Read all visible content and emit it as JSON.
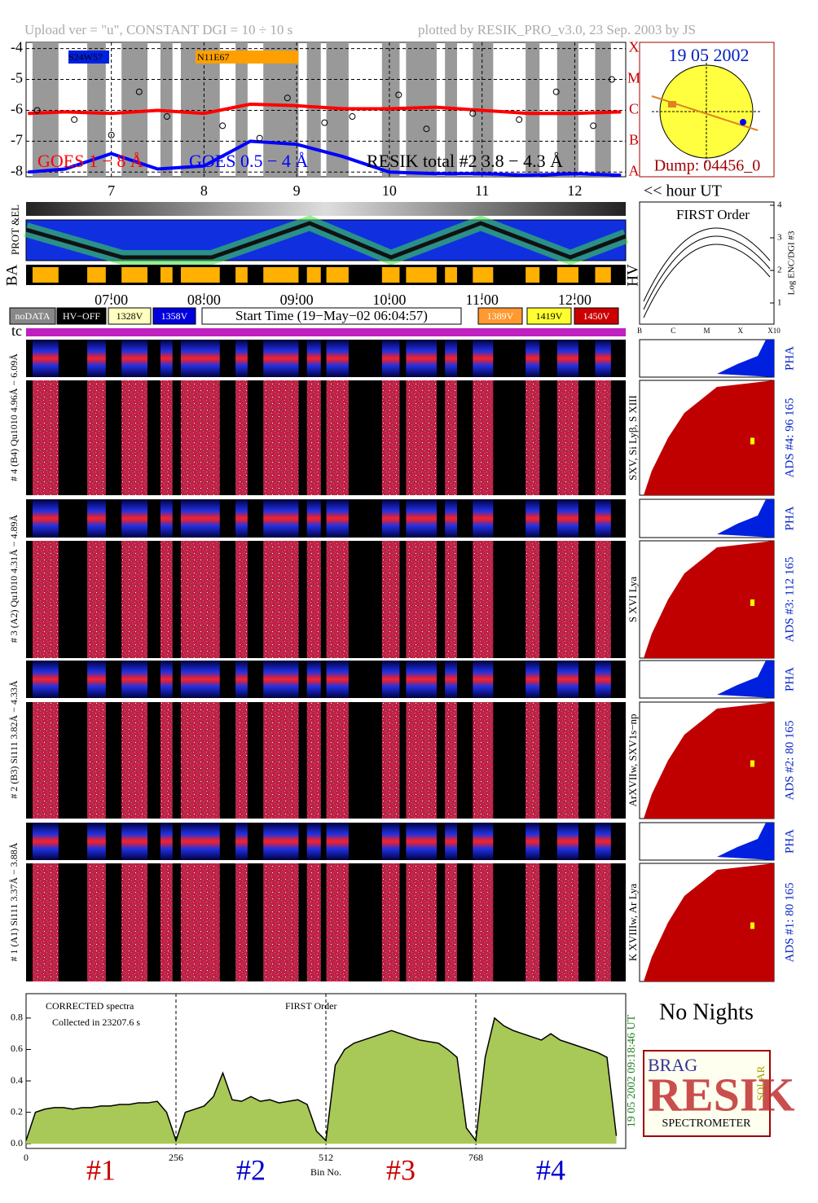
{
  "header": {
    "upload": "Upload ver = \"u\", CONSTANT  DGI =  10 ÷  10 s",
    "plotted": "plotted by RESIK_PRO_v3.0, 23 Sep. 2003 by JS"
  },
  "chart_data": [
    {
      "type": "goes",
      "xlim": [
        6.08,
        12.55
      ],
      "ylim": [
        -8.15,
        -3.8
      ],
      "xticks": [
        7,
        8,
        9,
        10,
        11,
        12
      ],
      "yticks": [
        -4,
        -5,
        -6,
        -7,
        -8
      ],
      "y2lim": [
        -8.15,
        -3.8
      ],
      "y2ticks": [
        {
          "value": -4,
          "label": "X"
        },
        {
          "value": -5,
          "label": "M"
        },
        {
          "value": -6,
          "label": "C"
        },
        {
          "value": -7,
          "label": "B"
        },
        {
          "value": -8,
          "label": "A"
        }
      ],
      "x2ticks": [
        {
          "value": 7,
          "label": "07:00"
        },
        {
          "value": 8,
          "label": "08:00"
        },
        {
          "value": 9,
          "label": "09:00"
        },
        {
          "value": 10,
          "label": "10:00"
        },
        {
          "value": 11,
          "label": "11:00"
        },
        {
          "value": 12,
          "label": "12:00"
        }
      ],
      "xlabel": "<< hour UT",
      "grid": true,
      "intervals": [
        [
          6.15,
          6.43
        ],
        [
          6.74,
          6.94
        ],
        [
          7.11,
          7.39
        ],
        [
          7.53,
          7.66
        ],
        [
          7.75,
          8.17
        ],
        [
          8.34,
          8.47
        ],
        [
          8.64,
          9.02
        ],
        [
          9.11,
          9.26
        ],
        [
          9.32,
          9.56
        ],
        [
          9.92,
          10.11
        ],
        [
          10.18,
          10.51
        ],
        [
          10.6,
          10.73
        ],
        [
          10.9,
          11.12
        ],
        [
          11.47,
          11.62
        ],
        [
          11.81,
          12.04
        ],
        [
          12.22,
          12.39
        ]
      ],
      "x": [
        6.1,
        6.5,
        7.0,
        7.5,
        8.0,
        8.5,
        9.0,
        9.5,
        10.0,
        10.5,
        11.0,
        11.5,
        12.0,
        12.5
      ],
      "series": [
        {
          "name": "GOES 1 − 8 Å",
          "color": "#ff0000",
          "values": [
            -6.1,
            -6.05,
            -6.1,
            -6.0,
            -6.1,
            -5.8,
            -5.85,
            -5.95,
            -5.95,
            -5.9,
            -6.0,
            -6.1,
            -6.1,
            -6.05
          ]
        },
        {
          "name": "GOES 0.5 − 4 Å",
          "color": "#0000ff",
          "values": [
            -8.0,
            -7.9,
            -7.4,
            -7.9,
            -7.8,
            -7.0,
            -7.1,
            -7.5,
            -8.0,
            -8.05,
            -8.05,
            -8.1,
            -8.05,
            -8.1
          ]
        }
      ],
      "scatter": {
        "name": "RESIK total #2  3.8 − 4.3 Å",
        "color": "#000000",
        "x": [
          6.2,
          6.6,
          7.0,
          7.3,
          7.6,
          8.2,
          8.6,
          8.9,
          9.3,
          9.6,
          10.1,
          10.4,
          10.9,
          11.4,
          11.8,
          12.2,
          12.4
        ],
        "values": [
          -6.0,
          -6.3,
          -6.8,
          -5.4,
          -6.2,
          -6.5,
          -6.9,
          -5.6,
          -6.4,
          -6.2,
          -5.5,
          -6.6,
          -6.1,
          -6.3,
          -5.4,
          -6.5,
          -5.0
        ]
      },
      "regions": [
        "S24W57",
        "N11E67"
      ]
    },
    {
      "type": "spectrum",
      "xlim": [
        0,
        1024
      ],
      "ylim": [
        -0.03,
        0.955
      ],
      "xticks": [
        0,
        256,
        512,
        768
      ],
      "yticks": [
        {
          "value": 0,
          "label": "0.0"
        },
        {
          "value": 0.2,
          "label": "0.2"
        },
        {
          "value": 0.4,
          "label": "0.4"
        },
        {
          "value": 0.6,
          "label": "0.6"
        },
        {
          "value": 0.8,
          "label": "0.8"
        }
      ],
      "xlabel": "Bin No.",
      "annotations": [
        "CORRECTED spectra",
        "Collected in 23207.6 s",
        "FIRST Order"
      ],
      "timestamp": "19 05 2002   09:18:46 UT",
      "channel_labels": [
        {
          "text": "#1",
          "color": "#cc0000"
        },
        {
          "text": "#2",
          "color": "#0000cc"
        },
        {
          "text": "#3",
          "color": "#cc0000"
        },
        {
          "text": "#4",
          "color": "#0000cc"
        }
      ],
      "color": "#a8c858",
      "x": [
        0,
        16,
        32,
        48,
        64,
        80,
        96,
        112,
        128,
        144,
        160,
        176,
        192,
        208,
        224,
        240,
        256,
        272,
        288,
        304,
        320,
        336,
        352,
        368,
        384,
        400,
        416,
        432,
        448,
        464,
        480,
        496,
        512,
        528,
        544,
        560,
        576,
        592,
        608,
        624,
        640,
        656,
        672,
        688,
        704,
        720,
        736,
        752,
        768,
        784,
        800,
        816,
        832,
        848,
        864,
        880,
        896,
        912,
        928,
        944,
        960,
        976,
        992,
        1008
      ],
      "values": [
        0.02,
        0.2,
        0.22,
        0.23,
        0.23,
        0.22,
        0.23,
        0.23,
        0.24,
        0.24,
        0.25,
        0.25,
        0.26,
        0.26,
        0.27,
        0.2,
        0.02,
        0.2,
        0.22,
        0.24,
        0.3,
        0.45,
        0.28,
        0.27,
        0.3,
        0.27,
        0.28,
        0.26,
        0.27,
        0.28,
        0.25,
        0.08,
        0.02,
        0.5,
        0.6,
        0.64,
        0.66,
        0.68,
        0.7,
        0.72,
        0.7,
        0.68,
        0.66,
        0.65,
        0.64,
        0.6,
        0.55,
        0.1,
        0.02,
        0.55,
        0.8,
        0.75,
        0.72,
        0.7,
        0.68,
        0.66,
        0.7,
        0.66,
        0.64,
        0.62,
        0.6,
        0.58,
        0.55,
        0.05
      ]
    },
    {
      "type": "first-order",
      "title": "FIRST Order",
      "ylabel": "Log ENC/DGI #3",
      "ylim": [
        0.35,
        4.1
      ],
      "yticks": [
        1,
        2,
        3,
        4
      ],
      "xticks": [
        "B",
        "C",
        "M",
        "X",
        "X10"
      ]
    }
  ],
  "sun": {
    "date": "19 05 2002",
    "dump": "Dump: 04456_0"
  },
  "strips": {
    "prot": "PROT &EL",
    "ba": "BA",
    "hv": "HV"
  },
  "legend": [
    {
      "text": "noDATA",
      "bg": "#888888",
      "fg": "#ffffff"
    },
    {
      "text": "HV−OFF",
      "bg": "#000000",
      "fg": "#ffffff"
    },
    {
      "text": "1328V",
      "bg": "#ffffc0",
      "fg": "#000000"
    },
    {
      "text": "1358V",
      "bg": "#0000dd",
      "fg": "#ffffff"
    },
    {
      "text": "Start Time (19−May−02 06:04:57)",
      "bg": "#ffffff",
      "fg": "#000000"
    },
    {
      "text": "1389V",
      "bg": "#ff9930",
      "fg": "#ffffff"
    },
    {
      "text": "1419V",
      "bg": "#ffff30",
      "fg": "#000000"
    },
    {
      "text": "1450V",
      "bg": "#cc0000",
      "fg": "#ffffff"
    }
  ],
  "tc": "tc",
  "channels": [
    {
      "label": "# 4 (B4) Qu1010 4.96Å − 6.09Å",
      "lines": "SXV, Si Lyβ, S XIII",
      "ads": "ADS #4:   96 165",
      "pha": "PHA"
    },
    {
      "label": "# 3 (A2) Qu1010 4.31Å − 4.89Å",
      "lines": "S XVI Lya",
      "ads": "ADS #3:   112 165",
      "pha": "PHA"
    },
    {
      "label": "# 2 (B3) Si111 3.82Å − 4.33Å",
      "lines": "ArXVIIw, SXV1s−np",
      "ads": "ADS #2:   80 165",
      "pha": "PHA"
    },
    {
      "label": "# 1 (A1) Si111 3.37Å − 3.88Å",
      "lines": "K XVIIIw, Ar Lya",
      "ads": "ADS #1:   80 165",
      "pha": "PHA"
    }
  ],
  "footer": {
    "no_nights": "No Nights",
    "logo": {
      "brag": "BRAG",
      "resik": "RESIK",
      "solar": "SOLAR",
      "spectrometer": "SPECTROMETER"
    }
  }
}
